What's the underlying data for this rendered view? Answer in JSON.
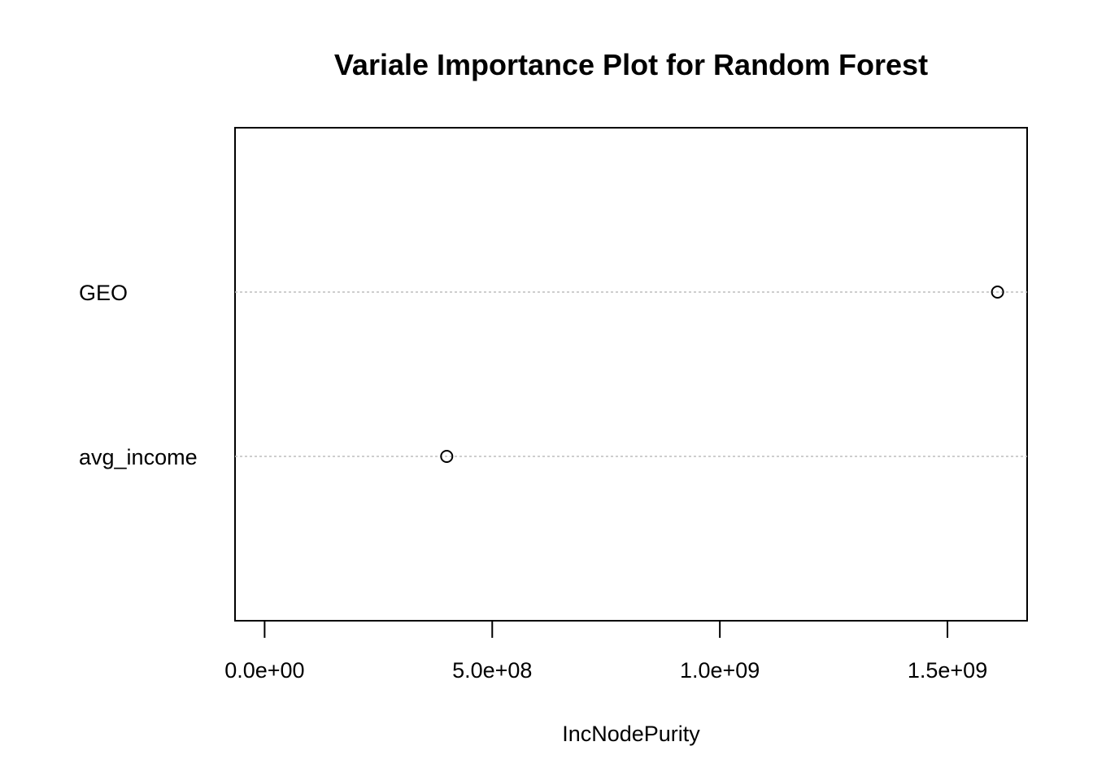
{
  "chart_data": {
    "type": "scatter",
    "title": "Variale Importance Plot for Random Forest",
    "xlabel": "IncNodePurity",
    "ylabel": "",
    "xlim": [
      -65000000,
      1675000000
    ],
    "x_ticks": [
      0,
      500000000,
      1000000000,
      1500000000
    ],
    "x_tick_labels": [
      "0.0e+00",
      "5.0e+08",
      "1.0e+09",
      "1.5e+09"
    ],
    "grid": "dotted horizontal guide lines per variable",
    "legend": "none",
    "categories": [
      "GEO",
      "avg_income"
    ],
    "values": [
      1610000000,
      400000000
    ],
    "colors": {
      "points": "#000000",
      "guides": "#bebebe",
      "frame": "#000000"
    }
  }
}
